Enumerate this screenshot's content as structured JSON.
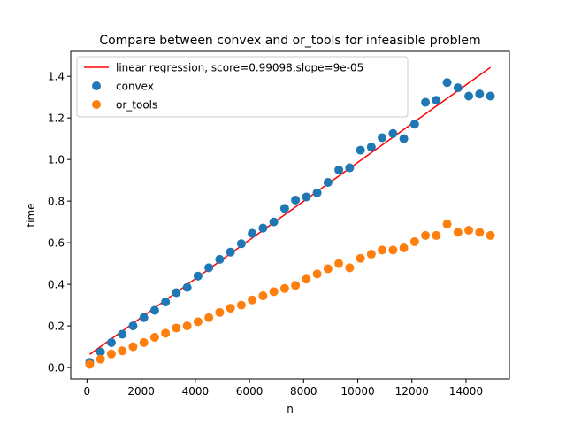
{
  "chart_data": {
    "type": "scatter",
    "title": "Compare between convex and or_tools for infeasible problem",
    "xlabel": "n",
    "ylabel": "time",
    "xlim": [
      -600,
      15600
    ],
    "ylim": [
      -0.055,
      1.52
    ],
    "grid": false,
    "legend_placement": "upper-left",
    "xticks": [
      0,
      2000,
      4000,
      6000,
      8000,
      10000,
      12000,
      14000
    ],
    "xtick_labels": [
      "0",
      "2000",
      "4000",
      "6000",
      "8000",
      "10000",
      "12000",
      "14000"
    ],
    "yticks": [
      0.0,
      0.2,
      0.4,
      0.6,
      0.8,
      1.0,
      1.2,
      1.4
    ],
    "ytick_labels": [
      "0.0",
      "0.2",
      "0.4",
      "0.6",
      "0.8",
      "1.0",
      "1.2",
      "1.4"
    ],
    "regression": {
      "label": "linear regression, score=0.99098,slope=9e-05",
      "color": "#ff0000",
      "x": [
        100,
        14900
      ],
      "y": [
        0.063,
        1.443
      ]
    },
    "series": [
      {
        "name": "convex",
        "color": "#1f77b4",
        "x": [
          100,
          500,
          900,
          1300,
          1700,
          2100,
          2500,
          2900,
          3300,
          3700,
          4100,
          4500,
          4900,
          5300,
          5700,
          6100,
          6500,
          6900,
          7300,
          7700,
          8100,
          8500,
          8900,
          9300,
          9700,
          10100,
          10500,
          10900,
          11300,
          11700,
          12100,
          12500,
          12900,
          13300,
          13700,
          14100,
          14500,
          14900
        ],
        "values": [
          0.025,
          0.075,
          0.12,
          0.16,
          0.2,
          0.24,
          0.275,
          0.315,
          0.36,
          0.385,
          0.44,
          0.48,
          0.52,
          0.555,
          0.595,
          0.645,
          0.67,
          0.7,
          0.765,
          0.805,
          0.82,
          0.84,
          0.89,
          0.95,
          0.96,
          1.045,
          1.06,
          1.105,
          1.125,
          1.1,
          1.17,
          1.275,
          1.285,
          1.37,
          1.345,
          1.305,
          1.315,
          1.305
        ]
      },
      {
        "name": "or_tools",
        "color": "#ff7f0e",
        "x": [
          100,
          500,
          900,
          1300,
          1700,
          2100,
          2500,
          2900,
          3300,
          3700,
          4100,
          4500,
          4900,
          5300,
          5700,
          6100,
          6500,
          6900,
          7300,
          7700,
          8100,
          8500,
          8900,
          9300,
          9700,
          10100,
          10500,
          10900,
          11300,
          11700,
          12100,
          12500,
          12900,
          13300,
          13700,
          14100,
          14500,
          14900
        ],
        "values": [
          0.015,
          0.04,
          0.065,
          0.08,
          0.1,
          0.12,
          0.145,
          0.165,
          0.19,
          0.2,
          0.22,
          0.24,
          0.265,
          0.285,
          0.3,
          0.325,
          0.345,
          0.365,
          0.38,
          0.395,
          0.425,
          0.45,
          0.475,
          0.5,
          0.48,
          0.525,
          0.545,
          0.565,
          0.565,
          0.575,
          0.605,
          0.635,
          0.635,
          0.69,
          0.65,
          0.66,
          0.65,
          0.635
        ]
      }
    ]
  }
}
